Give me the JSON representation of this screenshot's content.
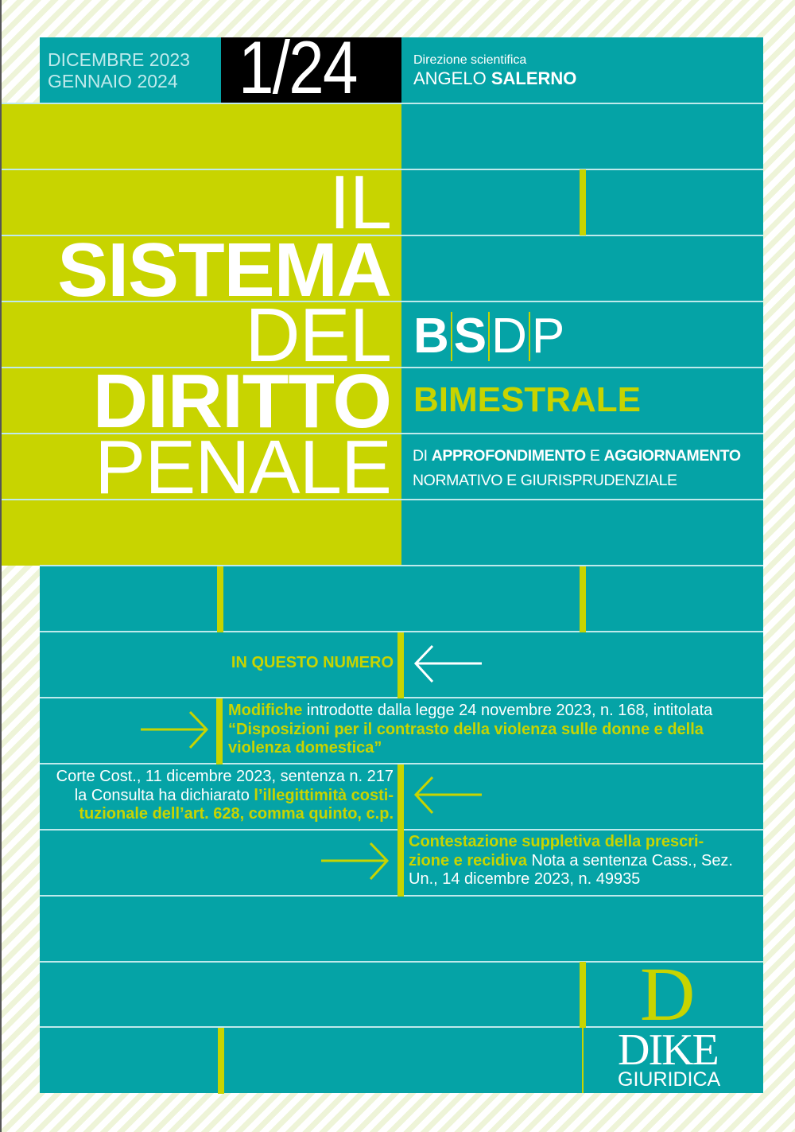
{
  "header": {
    "date_line1": "DICEMBRE 2023",
    "date_line2": "GENNAIO 2024",
    "issue": "1/24",
    "direction_label": "Direzione scientifica",
    "director_first": "ANGELO",
    "director_last": "SALERNO"
  },
  "title": {
    "line1": "IL",
    "line2": "SISTEMA",
    "line3": "DEL",
    "line4": "DIRITTO",
    "line5": "PENALE"
  },
  "acronym": [
    "B",
    "S",
    "D",
    "P"
  ],
  "frequency": "BIMESTRALE",
  "subtitle": {
    "di": "DI",
    "approfondimento": "APPROFONDIMENTO",
    "e1": "E",
    "aggiornamento": "AGGIORNAMENTO",
    "normativo": "NORMATIVO",
    "e2": "E",
    "giurisprudenziale": "GIURISPRUDENZIALE"
  },
  "contents": {
    "heading": "IN QUESTO NUMERO",
    "item1": {
      "bold": "Modifiche",
      "text": " introdotte dalla legge 24 novembre 2023, n. 168, intitolata ",
      "quote": "“Disposizioni per il contrasto della violenza sulle donne e della violenza domestica”"
    },
    "item2": {
      "line1": "Corte Cost., 11 dicembre 2023, sentenza n. 217",
      "text": "la Consulta ha dichiarato ",
      "bold": "l’illegittimità costi-tuzionale dell’art. 628, comma quinto, c.p."
    },
    "item3": {
      "bold": "Contestazione suppletiva della prescri-zione e recidiva",
      "text": " Nota a sentenza Cass., Sez. Un., 14 dicembre 2023, n. 49935"
    }
  },
  "publisher": {
    "logo_letter": "D",
    "name": "DIKE",
    "subname": "GIURIDICA"
  },
  "colors": {
    "teal": "#05a3a6",
    "lime": "#c8d400",
    "black": "#000000"
  }
}
